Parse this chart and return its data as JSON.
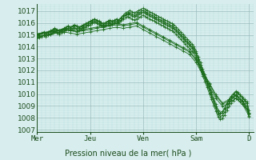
{
  "background_color": "#d8eeee",
  "grid_color_major": "#99bbbb",
  "grid_color_minor": "#bbdddd",
  "line_color": "#1a6b1a",
  "title": "Pression niveau de la mer( hPa )",
  "x_labels": [
    "Mer",
    "Jeu",
    "Ven",
    "Sam",
    "D"
  ],
  "x_ticks": [
    0,
    48,
    96,
    144,
    192
  ],
  "ylim": [
    1006.8,
    1017.6
  ],
  "yticks": [
    1007,
    1008,
    1009,
    1010,
    1011,
    1012,
    1013,
    1014,
    1015,
    1016,
    1017
  ],
  "xlim": [
    0,
    196
  ],
  "series": [
    {
      "x": [
        0,
        2,
        4,
        6,
        8,
        10,
        12,
        14,
        16,
        18,
        20,
        22,
        24,
        26,
        28,
        30,
        32,
        34,
        36,
        38,
        40,
        42,
        44,
        46,
        48,
        50,
        52,
        54,
        56,
        58,
        60,
        62,
        64,
        66,
        68,
        70,
        72,
        74,
        76,
        78,
        80,
        82,
        84,
        86,
        88,
        90,
        92,
        94,
        96,
        98,
        100,
        102,
        104,
        106,
        108,
        110,
        112,
        114,
        116,
        118,
        120,
        122,
        124,
        126,
        128,
        130,
        132,
        134,
        136,
        138,
        140,
        142,
        144,
        146,
        148,
        150,
        152,
        154,
        156,
        158,
        160,
        162,
        164,
        166,
        168,
        170,
        172,
        174,
        176,
        178,
        180,
        182,
        184,
        186,
        188,
        190,
        192
      ],
      "y": [
        1014.8,
        1014.85,
        1014.9,
        1015.0,
        1015.0,
        1015.05,
        1015.1,
        1015.2,
        1015.3,
        1015.25,
        1015.2,
        1015.3,
        1015.4,
        1015.5,
        1015.55,
        1015.5,
        1015.55,
        1015.6,
        1015.55,
        1015.5,
        1015.55,
        1015.65,
        1015.75,
        1015.85,
        1015.95,
        1016.05,
        1016.15,
        1016.05,
        1015.95,
        1015.85,
        1015.8,
        1015.85,
        1015.95,
        1016.05,
        1015.95,
        1016.05,
        1016.15,
        1016.05,
        1016.25,
        1016.45,
        1016.65,
        1016.75,
        1016.85,
        1016.75,
        1016.65,
        1016.75,
        1016.85,
        1016.95,
        1017.05,
        1016.95,
        1016.85,
        1016.75,
        1016.65,
        1016.55,
        1016.45,
        1016.35,
        1016.25,
        1016.15,
        1016.05,
        1015.95,
        1015.85,
        1015.75,
        1015.65,
        1015.45,
        1015.25,
        1015.05,
        1014.85,
        1014.65,
        1014.45,
        1014.25,
        1014.05,
        1013.85,
        1013.45,
        1012.95,
        1012.45,
        1011.95,
        1011.45,
        1010.95,
        1010.45,
        1009.95,
        1009.45,
        1008.95,
        1008.45,
        1008.35,
        1008.45,
        1008.75,
        1009.15,
        1009.45,
        1009.75,
        1009.95,
        1010.15,
        1010.05,
        1009.85,
        1009.65,
        1009.45,
        1009.25,
        1008.45
      ]
    },
    {
      "x": [
        0,
        2,
        4,
        6,
        8,
        10,
        12,
        14,
        16,
        18,
        20,
        22,
        24,
        26,
        28,
        30,
        32,
        34,
        36,
        38,
        40,
        42,
        44,
        46,
        48,
        50,
        52,
        54,
        56,
        58,
        60,
        62,
        64,
        66,
        68,
        70,
        72,
        74,
        76,
        78,
        80,
        82,
        84,
        86,
        88,
        90,
        92,
        94,
        96,
        98,
        100,
        102,
        104,
        106,
        108,
        110,
        112,
        114,
        116,
        118,
        120,
        122,
        124,
        126,
        128,
        130,
        132,
        134,
        136,
        138,
        140,
        142,
        144,
        146,
        148,
        150,
        152,
        154,
        156,
        158,
        160,
        162,
        164,
        166,
        168,
        170,
        172,
        174,
        176,
        178,
        180,
        182,
        184,
        186,
        188,
        190,
        192
      ],
      "y": [
        1014.7,
        1014.75,
        1014.85,
        1014.95,
        1014.85,
        1014.95,
        1015.05,
        1015.15,
        1015.25,
        1015.15,
        1015.05,
        1015.15,
        1015.25,
        1015.35,
        1015.45,
        1015.35,
        1015.45,
        1015.55,
        1015.45,
        1015.35,
        1015.45,
        1015.55,
        1015.65,
        1015.75,
        1015.85,
        1015.95,
        1016.05,
        1015.95,
        1015.85,
        1015.75,
        1015.65,
        1015.75,
        1015.85,
        1015.95,
        1015.85,
        1015.95,
        1016.05,
        1015.95,
        1016.15,
        1016.35,
        1016.45,
        1016.55,
        1016.45,
        1016.35,
        1016.25,
        1016.35,
        1016.45,
        1016.55,
        1016.65,
        1016.55,
        1016.45,
        1016.35,
        1016.25,
        1016.15,
        1016.05,
        1015.95,
        1015.85,
        1015.75,
        1015.65,
        1015.55,
        1015.45,
        1015.35,
        1015.25,
        1015.05,
        1014.85,
        1014.65,
        1014.45,
        1014.25,
        1014.05,
        1013.85,
        1013.65,
        1013.45,
        1013.05,
        1012.55,
        1012.05,
        1011.55,
        1011.05,
        1010.55,
        1010.05,
        1009.55,
        1009.05,
        1008.55,
        1008.05,
        1007.85,
        1007.95,
        1008.25,
        1008.65,
        1008.95,
        1009.25,
        1009.45,
        1009.65,
        1009.55,
        1009.35,
        1009.15,
        1008.95,
        1008.75,
        1008.05
      ]
    },
    {
      "x": [
        0,
        2,
        4,
        6,
        8,
        10,
        12,
        14,
        16,
        18,
        20,
        22,
        24,
        26,
        28,
        30,
        32,
        34,
        36,
        38,
        40,
        42,
        44,
        46,
        48,
        50,
        52,
        54,
        56,
        58,
        60,
        62,
        64,
        66,
        68,
        70,
        72,
        74,
        76,
        78,
        80,
        82,
        84,
        86,
        88,
        90,
        92,
        94,
        96,
        98,
        100,
        102,
        104,
        106,
        108,
        110,
        112,
        114,
        116,
        118,
        120,
        122,
        124,
        126,
        128,
        130,
        132,
        134,
        136,
        138,
        140,
        142,
        144,
        146,
        148,
        150,
        152,
        154,
        156,
        158,
        160,
        162,
        164,
        166,
        168,
        170,
        172,
        174,
        176,
        178,
        180,
        182,
        184,
        186,
        188,
        190,
        192
      ],
      "y": [
        1015.0,
        1015.05,
        1015.15,
        1015.25,
        1015.15,
        1015.25,
        1015.35,
        1015.45,
        1015.55,
        1015.45,
        1015.35,
        1015.45,
        1015.55,
        1015.65,
        1015.75,
        1015.65,
        1015.75,
        1015.85,
        1015.75,
        1015.65,
        1015.75,
        1015.85,
        1015.95,
        1016.05,
        1016.15,
        1016.25,
        1016.35,
        1016.25,
        1016.15,
        1016.05,
        1015.95,
        1016.05,
        1016.15,
        1016.25,
        1016.15,
        1016.25,
        1016.35,
        1016.25,
        1016.45,
        1016.65,
        1016.85,
        1016.95,
        1017.05,
        1016.95,
        1016.85,
        1016.95,
        1017.05,
        1017.15,
        1017.25,
        1017.15,
        1017.05,
        1016.95,
        1016.85,
        1016.75,
        1016.65,
        1016.55,
        1016.45,
        1016.35,
        1016.25,
        1016.15,
        1016.05,
        1015.95,
        1015.85,
        1015.65,
        1015.45,
        1015.25,
        1015.05,
        1014.85,
        1014.65,
        1014.45,
        1014.25,
        1014.05,
        1013.65,
        1013.15,
        1012.65,
        1012.15,
        1011.65,
        1011.15,
        1010.65,
        1010.15,
        1009.65,
        1009.15,
        1008.65,
        1008.45,
        1008.55,
        1008.85,
        1009.25,
        1009.55,
        1009.85,
        1010.05,
        1010.25,
        1010.15,
        1009.95,
        1009.75,
        1009.55,
        1009.35,
        1008.65
      ]
    },
    {
      "x": [
        0,
        2,
        4,
        6,
        8,
        10,
        12,
        14,
        16,
        18,
        20,
        22,
        24,
        26,
        28,
        30,
        32,
        34,
        36,
        38,
        40,
        42,
        44,
        46,
        48,
        50,
        52,
        54,
        56,
        58,
        60,
        62,
        64,
        66,
        68,
        70,
        72,
        74,
        76,
        78,
        80,
        82,
        84,
        86,
        88,
        90,
        92,
        94,
        96,
        98,
        100,
        102,
        104,
        106,
        108,
        110,
        112,
        114,
        116,
        118,
        120,
        122,
        124,
        126,
        128,
        130,
        132,
        134,
        136,
        138,
        140,
        142,
        144,
        146,
        148,
        150,
        152,
        154,
        156,
        158,
        160,
        162,
        164,
        166,
        168,
        170,
        172,
        174,
        176,
        178,
        180,
        182,
        184,
        186,
        188,
        190,
        192
      ],
      "y": [
        1015.0,
        1015.0,
        1015.1,
        1015.2,
        1015.1,
        1015.2,
        1015.3,
        1015.4,
        1015.5,
        1015.4,
        1015.3,
        1015.4,
        1015.5,
        1015.6,
        1015.7,
        1015.6,
        1015.7,
        1015.8,
        1015.7,
        1015.6,
        1015.7,
        1015.8,
        1015.9,
        1016.0,
        1016.1,
        1016.2,
        1016.3,
        1016.2,
        1016.1,
        1016.0,
        1015.9,
        1016.0,
        1016.1,
        1016.2,
        1016.1,
        1016.2,
        1016.3,
        1016.2,
        1016.4,
        1016.6,
        1016.7,
        1016.8,
        1016.7,
        1016.6,
        1016.5,
        1016.6,
        1016.7,
        1016.8,
        1016.9,
        1016.8,
        1016.7,
        1016.6,
        1016.5,
        1016.4,
        1016.3,
        1016.2,
        1016.1,
        1016.0,
        1015.9,
        1015.8,
        1015.7,
        1015.6,
        1015.5,
        1015.3,
        1015.1,
        1014.9,
        1014.7,
        1014.5,
        1014.3,
        1014.1,
        1013.9,
        1013.7,
        1013.3,
        1012.8,
        1012.3,
        1011.8,
        1011.3,
        1010.8,
        1010.3,
        1009.8,
        1009.3,
        1008.8,
        1008.3,
        1008.1,
        1008.2,
        1008.5,
        1008.9,
        1009.2,
        1009.5,
        1009.7,
        1009.9,
        1009.8,
        1009.6,
        1009.4,
        1009.2,
        1009.0,
        1008.3
      ]
    },
    {
      "x": [
        0,
        6,
        12,
        18,
        24,
        30,
        36,
        42,
        48,
        54,
        60,
        66,
        72,
        78,
        84,
        90,
        96,
        102,
        108,
        114,
        120,
        126,
        132,
        138,
        144,
        150,
        156,
        162,
        168,
        174,
        180,
        186,
        192
      ],
      "y": [
        1015.1,
        1015.2,
        1015.3,
        1015.4,
        1015.5,
        1015.4,
        1015.3,
        1015.45,
        1015.55,
        1015.65,
        1015.75,
        1015.85,
        1015.95,
        1015.85,
        1015.95,
        1016.05,
        1015.75,
        1015.45,
        1015.15,
        1014.85,
        1014.55,
        1014.25,
        1013.95,
        1013.65,
        1012.95,
        1011.95,
        1010.95,
        1009.95,
        1009.25,
        1009.55,
        1009.95,
        1009.45,
        1008.45
      ]
    },
    {
      "x": [
        0,
        6,
        12,
        18,
        24,
        30,
        36,
        42,
        48,
        54,
        60,
        66,
        72,
        78,
        84,
        90,
        96,
        102,
        108,
        114,
        120,
        126,
        132,
        138,
        144,
        150,
        156,
        162,
        168,
        174,
        180,
        186,
        192
      ],
      "y": [
        1014.85,
        1014.95,
        1015.05,
        1015.15,
        1015.25,
        1015.15,
        1015.05,
        1015.15,
        1015.25,
        1015.35,
        1015.45,
        1015.55,
        1015.65,
        1015.55,
        1015.65,
        1015.75,
        1015.45,
        1015.15,
        1014.85,
        1014.55,
        1014.25,
        1013.95,
        1013.65,
        1013.35,
        1012.65,
        1011.65,
        1010.65,
        1009.65,
        1008.95,
        1009.25,
        1009.65,
        1009.15,
        1008.15
      ]
    },
    {
      "x": [
        0,
        6,
        12,
        18,
        24,
        30,
        36,
        42,
        48,
        54,
        60,
        66,
        72,
        78,
        84,
        90,
        96,
        102,
        108,
        114,
        120,
        126,
        132,
        138,
        144,
        150,
        156,
        162,
        168,
        174,
        180,
        186,
        192
      ],
      "y": [
        1015.05,
        1015.15,
        1015.25,
        1015.35,
        1015.45,
        1015.35,
        1015.25,
        1015.35,
        1015.45,
        1015.55,
        1015.65,
        1015.75,
        1015.85,
        1015.75,
        1015.85,
        1015.95,
        1015.65,
        1015.35,
        1015.05,
        1014.75,
        1014.45,
        1014.15,
        1013.85,
        1013.55,
        1012.85,
        1011.85,
        1010.85,
        1009.85,
        1009.15,
        1009.45,
        1009.85,
        1009.35,
        1008.35
      ]
    }
  ]
}
